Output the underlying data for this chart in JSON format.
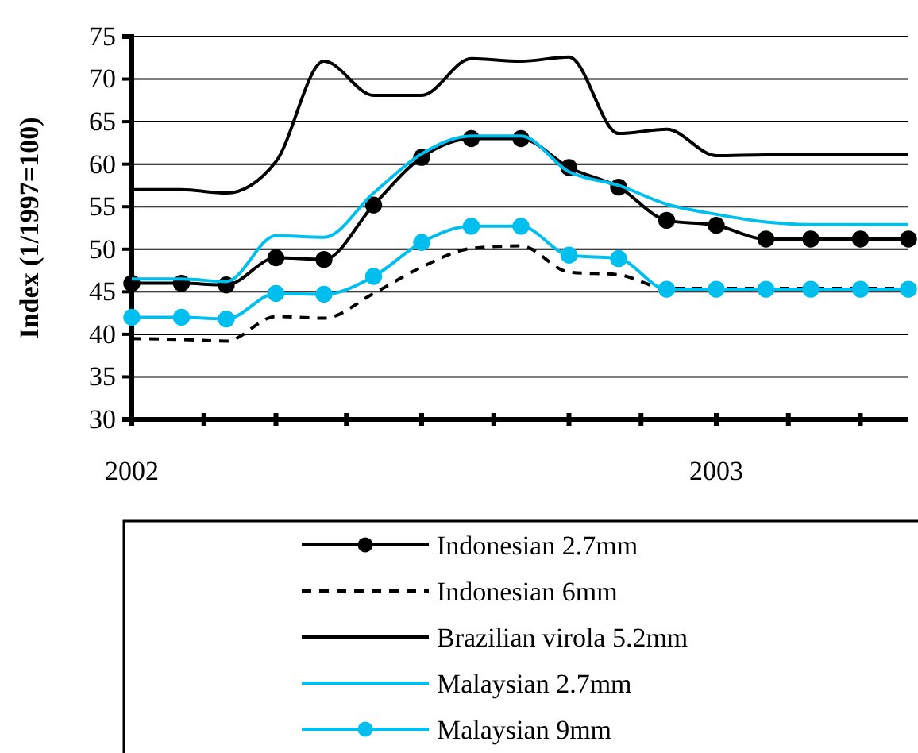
{
  "chart_data": {
    "type": "line",
    "ylabel": "Index  (1/1997=100)",
    "x": [
      "2002-01",
      "2002-02",
      "2002-03",
      "2002-04",
      "2002-05",
      "2002-06",
      "2002-07",
      "2002-08",
      "2002-09",
      "2002-10",
      "2002-11",
      "2002-12",
      "2003-01",
      "2003-02",
      "2003-03",
      "2003-04",
      "2003-05"
    ],
    "xlim": [
      "2002-01",
      "2003-05"
    ],
    "xticks": [
      {
        "value": "2002-01-01",
        "label": "2002"
      },
      {
        "value": "2002-02-15",
        "label": null
      },
      {
        "value": "2002-04-01",
        "label": null
      },
      {
        "value": "2002-05-15",
        "label": null
      },
      {
        "value": "2002-07-01",
        "label": null
      },
      {
        "value": "2002-08-15",
        "label": null
      },
      {
        "value": "2002-10-01",
        "label": null
      },
      {
        "value": "2002-11-15",
        "label": null
      },
      {
        "value": "2003-01-01",
        "label": "2003"
      },
      {
        "value": "2003-02-15",
        "label": null
      },
      {
        "value": "2003-04-01",
        "label": null
      }
    ],
    "ylim": [
      30,
      75
    ],
    "yticks": [
      30,
      35,
      40,
      45,
      50,
      55,
      60,
      65,
      70,
      75
    ],
    "grid": "y",
    "legend": "bottom",
    "series": [
      {
        "name": "Indonesian 2.7mm",
        "color": "#000000",
        "marker": "circle",
        "line_style": "solid",
        "values": [
          46,
          46,
          45.8,
          49,
          48.8,
          55.2,
          60.8,
          63,
          63,
          59.6,
          57.3,
          53.4,
          52.8,
          51.2,
          51.2,
          51.2,
          51.2
        ]
      },
      {
        "name": "Indonesian 6mm",
        "color": "#000000",
        "marker": "none",
        "line_style": "dashed",
        "values": [
          39.5,
          39.4,
          39.2,
          42.1,
          41.9,
          44.8,
          47.9,
          50.1,
          50.4,
          47.3,
          47,
          45.4,
          45.4,
          45.4,
          45.4,
          45.4,
          45.4
        ]
      },
      {
        "name": "Brazilian virola 5.2mm",
        "color": "#000000",
        "marker": "none",
        "line_style": "solid",
        "values": [
          57,
          57,
          56.6,
          60.3,
          72.1,
          68.1,
          68.1,
          72.4,
          72.1,
          72.6,
          63.6,
          64.1,
          61,
          61.1,
          61.1,
          61.1,
          61.1
        ]
      },
      {
        "name": "Malaysian 2.7mm",
        "color": "#00bfef",
        "marker": "none",
        "line_style": "solid",
        "values": [
          46.5,
          46.5,
          46.2,
          51.6,
          51.4,
          56.6,
          61.2,
          63.3,
          63.3,
          59.1,
          57.5,
          55.3,
          54.1,
          53.2,
          52.9,
          52.9,
          52.9
        ]
      },
      {
        "name": "Malaysian 9mm",
        "color": "#00bfef",
        "marker": "circle",
        "line_style": "solid",
        "values": [
          42,
          42,
          41.8,
          44.8,
          44.7,
          46.8,
          50.8,
          52.7,
          52.7,
          49.3,
          48.9,
          45.3,
          45.3,
          45.3,
          45.3,
          45.3,
          45.3
        ]
      }
    ]
  }
}
